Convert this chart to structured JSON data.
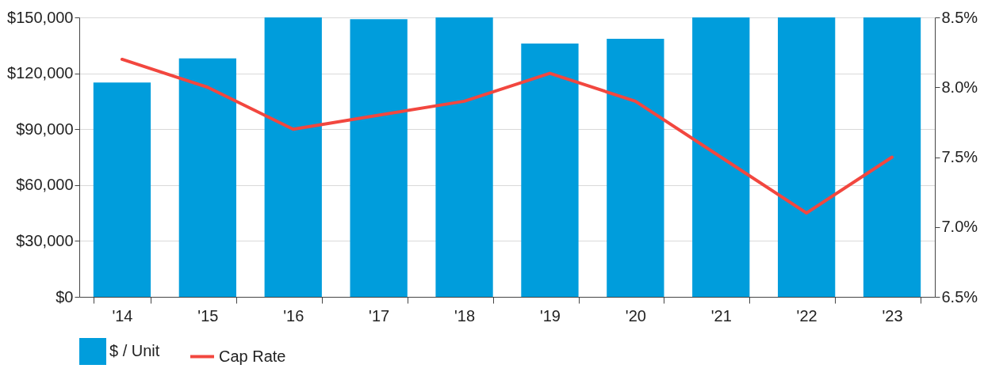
{
  "chart_data": {
    "type": "bar",
    "categories": [
      "'14",
      "'15",
      "'16",
      "'17",
      "'18",
      "'19",
      "'20",
      "'21",
      "'22",
      "'23"
    ],
    "series": [
      {
        "name": "$ / Unit",
        "color": "#009ddc",
        "values": [
          115000,
          128000,
          150000,
          149000,
          150000,
          136000,
          138500,
          150000,
          150000,
          150000
        ]
      },
      {
        "name": "Cap Rate",
        "type": "line",
        "axis": "y2",
        "color": "#f2473f",
        "values": [
          8.2,
          8.0,
          7.7,
          7.8,
          7.9,
          8.1,
          7.9,
          7.5,
          7.1,
          7.5
        ]
      }
    ],
    "ylim": [
      0,
      150000
    ],
    "yticks": [
      {
        "value": 0,
        "label": "$0"
      },
      {
        "value": 30000,
        "label": "$30,000"
      },
      {
        "value": 60000,
        "label": "$60,000"
      },
      {
        "value": 90000,
        "label": "$90,000"
      },
      {
        "value": 120000,
        "label": "$120,000"
      },
      {
        "value": 150000,
        "label": "$150,000"
      }
    ],
    "y2lim": [
      6.5,
      8.5
    ],
    "y2ticks": [
      {
        "value": 6.5,
        "label": "6.5%"
      },
      {
        "value": 7.0,
        "label": "7.0%"
      },
      {
        "value": 7.5,
        "label": "7.5%"
      },
      {
        "value": 8.0,
        "label": "8.0%"
      },
      {
        "value": 8.5,
        "label": "8.5%"
      }
    ],
    "grid": "y",
    "legend": "bottom"
  }
}
